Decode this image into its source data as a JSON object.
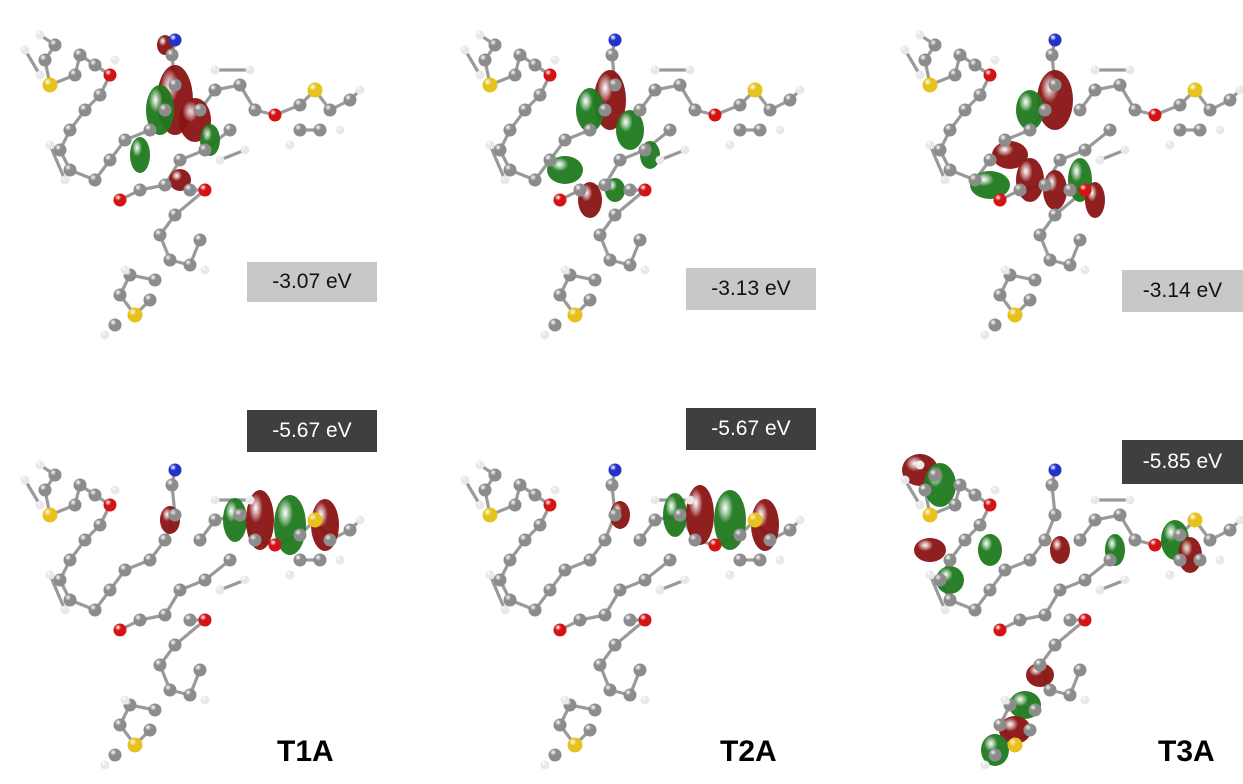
{
  "colors": {
    "lobe_positive": "#8a1414",
    "lobe_negative": "#1f7a1f",
    "carbon": "#8c8c8c",
    "hydrogen": "#e8e8e8",
    "oxygen": "#d41414",
    "sulfur": "#e8c21c",
    "nitrogen": "#2233cc",
    "lumo_box": "#c8c8c8",
    "homo_box": "#3f3f3f"
  },
  "panels": [
    {
      "molecule": "T1A",
      "lumo_energy": "-3.07 eV",
      "homo_energy": "-5.67 eV"
    },
    {
      "molecule": "T2A",
      "lumo_energy": "-3.13 eV",
      "homo_energy": "-5.67 eV"
    },
    {
      "molecule": "T3A",
      "lumo_energy": "-3.14 eV",
      "homo_energy": "-5.85 eV"
    }
  ]
}
